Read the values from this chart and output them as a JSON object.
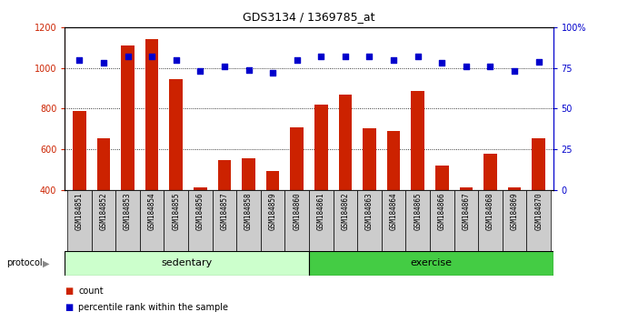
{
  "title": "GDS3134 / 1369785_at",
  "samples": [
    "GSM184851",
    "GSM184852",
    "GSM184853",
    "GSM184854",
    "GSM184855",
    "GSM184856",
    "GSM184857",
    "GSM184858",
    "GSM184859",
    "GSM184860",
    "GSM184861",
    "GSM184862",
    "GSM184863",
    "GSM184864",
    "GSM184865",
    "GSM184866",
    "GSM184867",
    "GSM184868",
    "GSM184869",
    "GSM184870"
  ],
  "counts": [
    790,
    655,
    1110,
    1140,
    945,
    415,
    548,
    557,
    493,
    710,
    818,
    869,
    705,
    690,
    885,
    520,
    415,
    580,
    415,
    655
  ],
  "percentile": [
    80,
    78,
    82,
    82,
    80,
    73,
    76,
    74,
    72,
    80,
    82,
    82,
    82,
    80,
    82,
    78,
    76,
    76,
    73,
    79
  ],
  "sedentary_count": 10,
  "exercise_count": 10,
  "ylim_left": [
    400,
    1200
  ],
  "ylim_right": [
    0,
    100
  ],
  "yticks_left": [
    400,
    600,
    800,
    1000,
    1200
  ],
  "yticks_right": [
    0,
    25,
    50,
    75,
    100
  ],
  "bar_color": "#cc2200",
  "dot_color": "#0000cc",
  "sedentary_color": "#ccffcc",
  "exercise_color": "#44cc44",
  "bg_color": "#cccccc",
  "protocol_label": "protocol",
  "sedentary_label": "sedentary",
  "exercise_label": "exercise",
  "legend_count_label": "count",
  "legend_percentile_label": "percentile rank within the sample",
  "gridline_values": [
    600,
    800,
    1000
  ]
}
